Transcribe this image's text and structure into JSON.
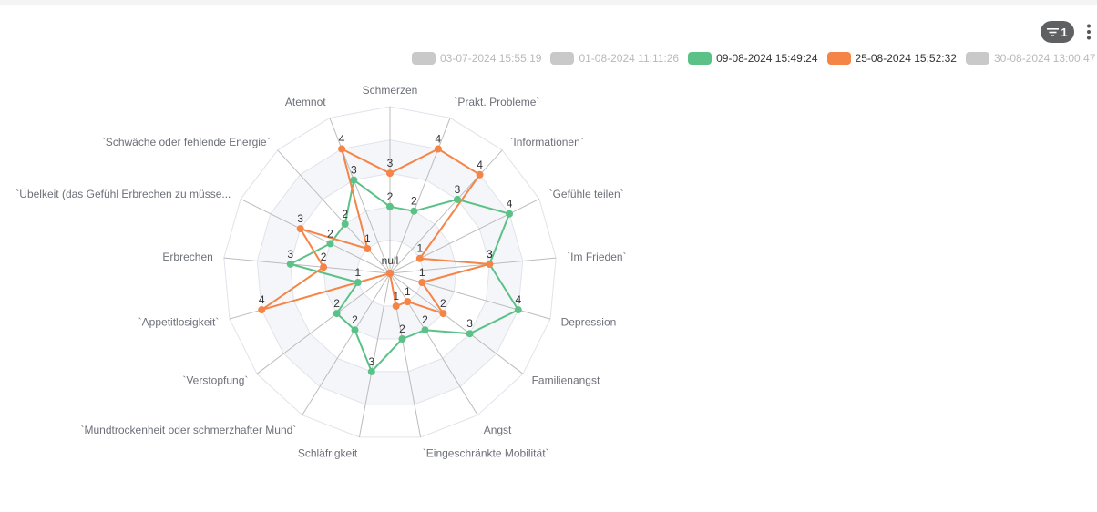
{
  "toolbar": {
    "filter_count": "1",
    "filter_icon": "filter-icon",
    "menu_icon": "more-vertical-icon"
  },
  "legend": [
    {
      "label": "03-07-2024 15:55:19",
      "active": false,
      "color": "#c9c9c9"
    },
    {
      "label": "01-08-2024 11:11:26",
      "active": false,
      "color": "#c9c9c9"
    },
    {
      "label": "09-08-2024 15:49:24",
      "active": true,
      "color": "#5cc187"
    },
    {
      "label": "25-08-2024 15:52:32",
      "active": true,
      "color": "#f58447"
    },
    {
      "label": "30-08-2024 13:00:47",
      "active": false,
      "color": "#c9c9c9"
    }
  ],
  "chart_data": {
    "type": "radar",
    "center_label": "null",
    "max": 5,
    "split_number": 5,
    "categories": [
      "Schmerzen",
      "`Prakt. Probleme`",
      "`Informationen`",
      "`Gefühle teilen`",
      "`Im Frieden`",
      "Depression",
      "Familienangst",
      "Angst",
      "`Eingeschränkte Mobilität`",
      "Schläfrigkeit",
      "`Mundtrockenheit oder schmerzhafter Mund`",
      "`Verstopfung`",
      "`Appetitlosigkeit`",
      "Erbrechen",
      "`Übelkeit (das Gefühl Erbrechen zu müsse...",
      "`Schwäche oder fehlende Energie`",
      "Atemnot"
    ],
    "series": [
      {
        "name": "09-08-2024 15:49:24",
        "color": "#5cc187",
        "values": [
          2,
          2,
          3,
          4,
          3,
          4,
          3,
          2,
          2,
          3,
          2,
          2,
          1,
          3,
          2,
          2,
          3
        ]
      },
      {
        "name": "25-08-2024 15:52:32",
        "color": "#f58447",
        "values": [
          3,
          4,
          4,
          1,
          3,
          1,
          2,
          1,
          1,
          null,
          null,
          null,
          4,
          2,
          3,
          1,
          4
        ]
      }
    ],
    "grid": true,
    "legend_position": "top-right"
  }
}
